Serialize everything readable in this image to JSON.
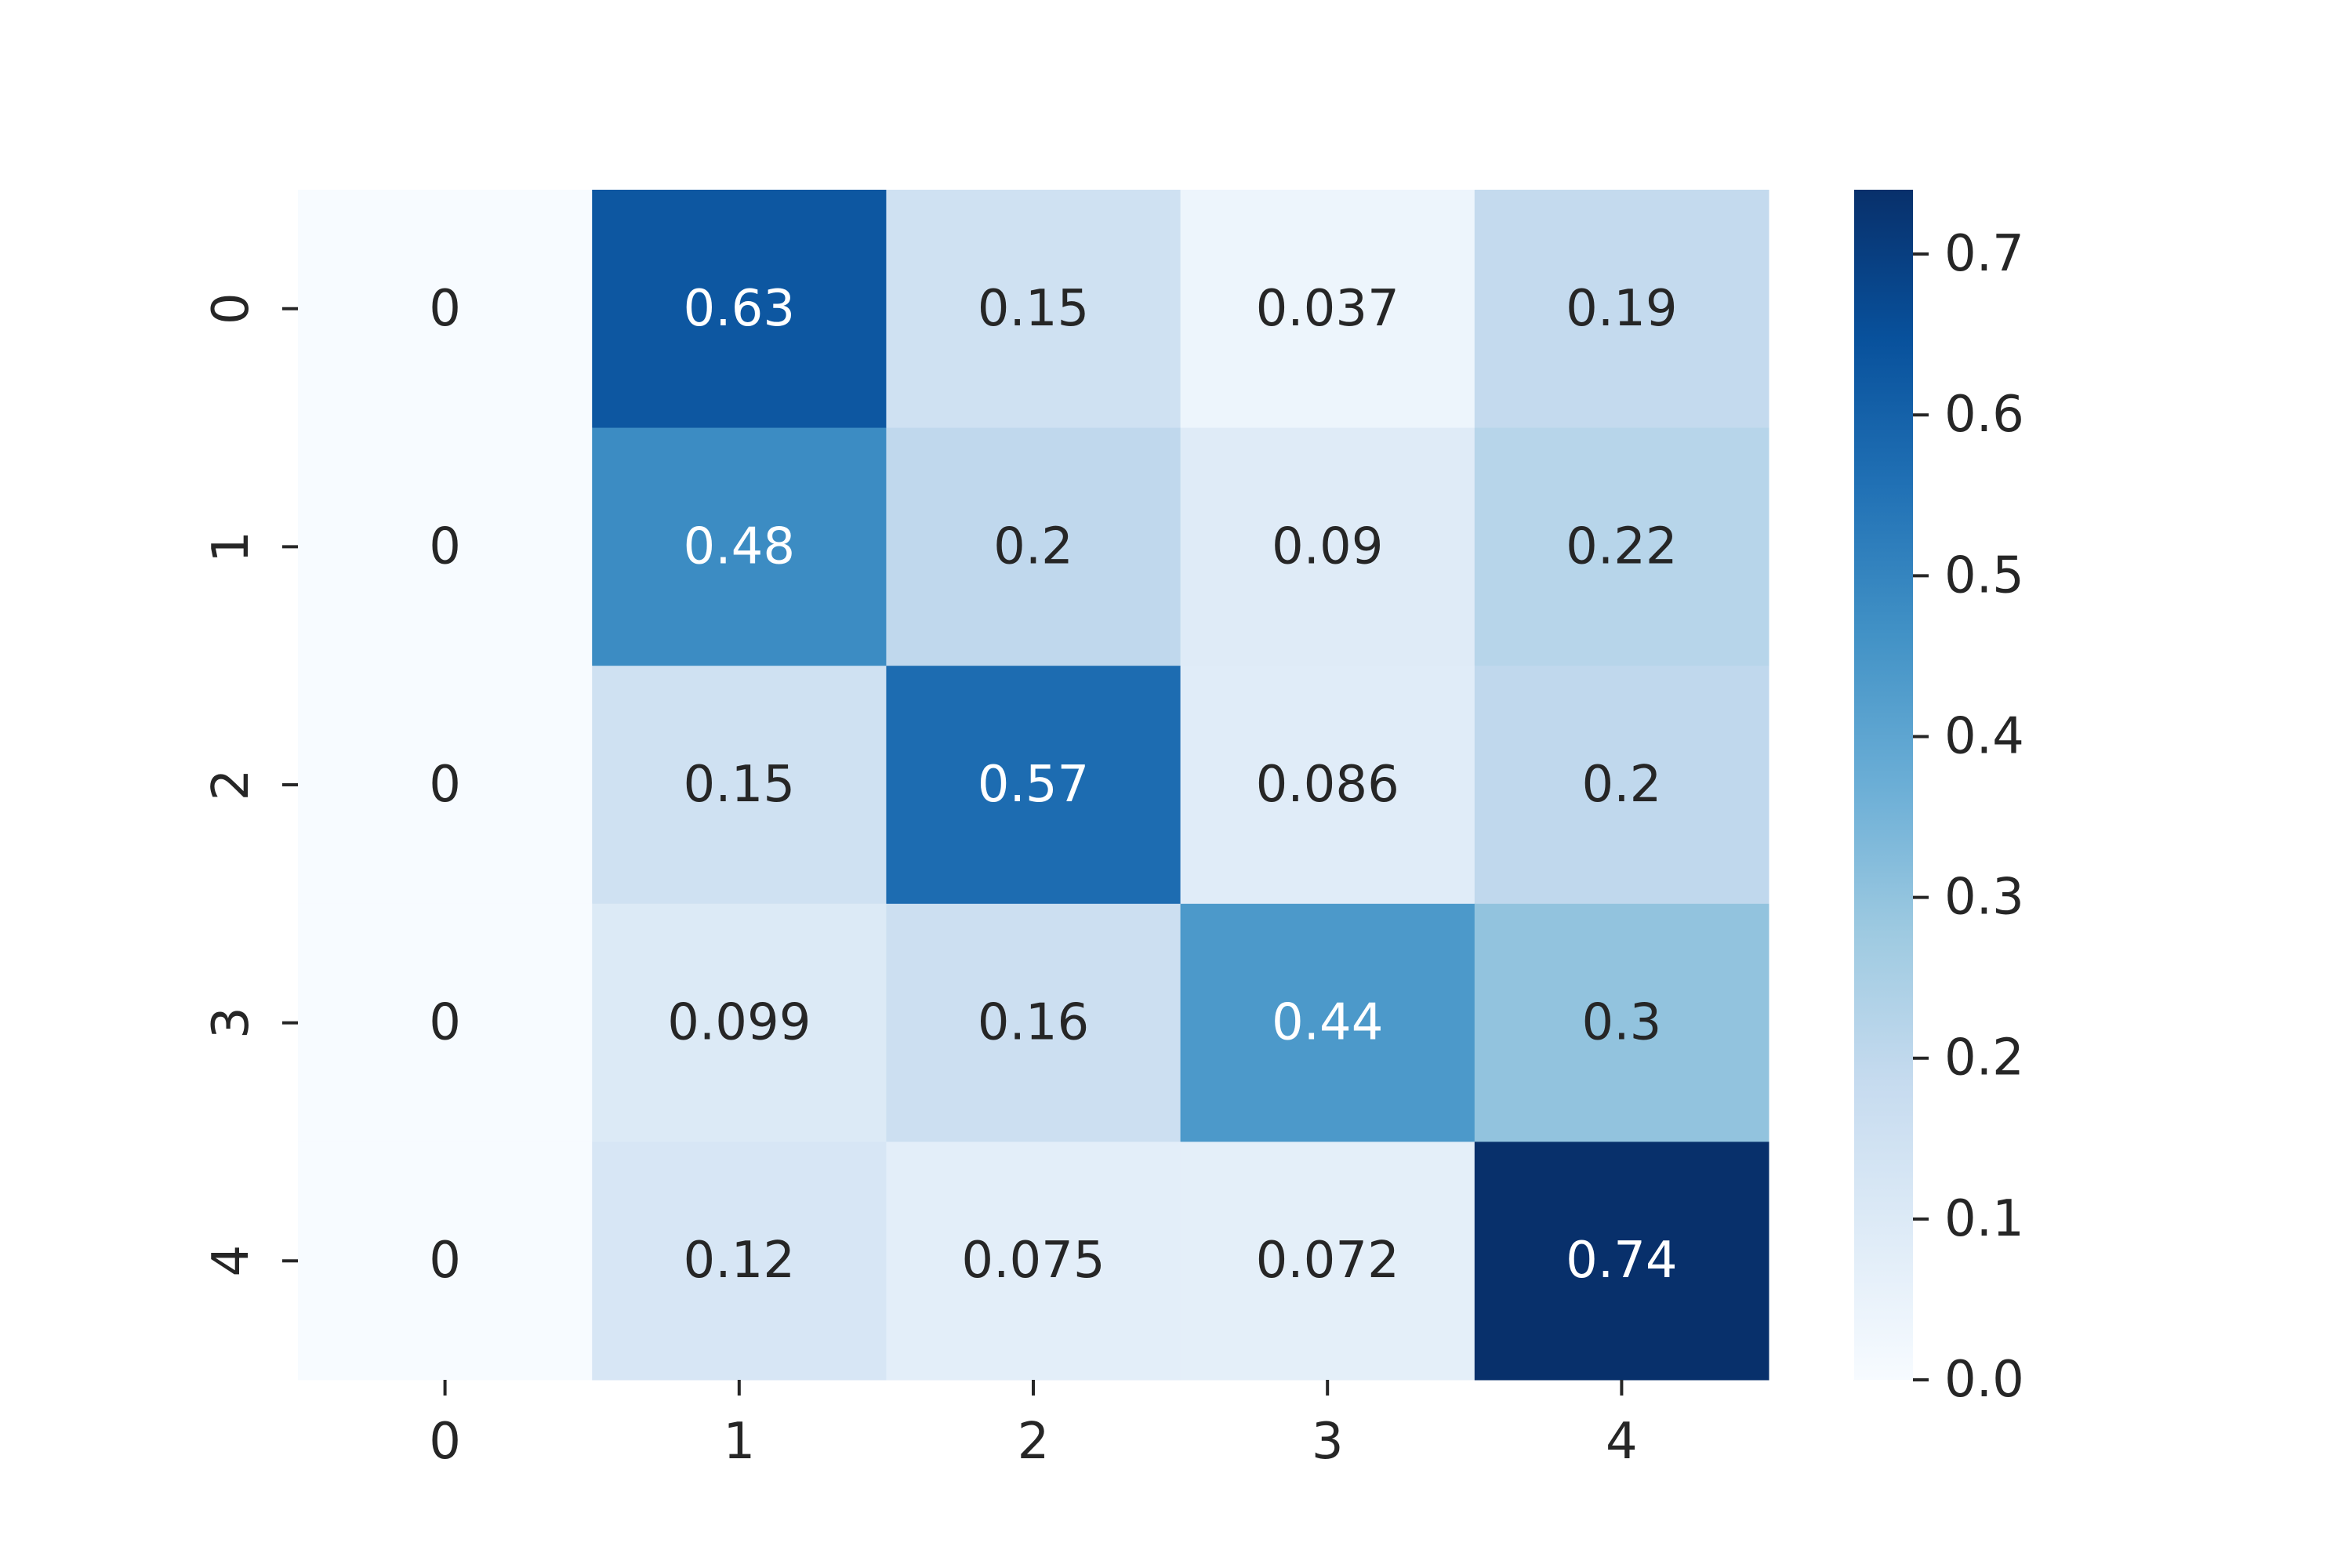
{
  "chart_data": {
    "type": "heatmap",
    "title": "",
    "xlabel": "",
    "ylabel": "",
    "x_categories": [
      "0",
      "1",
      "2",
      "3",
      "4"
    ],
    "y_categories": [
      "0",
      "1",
      "2",
      "3",
      "4"
    ],
    "values": [
      [
        0,
        0.63,
        0.15,
        0.037,
        0.19
      ],
      [
        0,
        0.48,
        0.2,
        0.09,
        0.22
      ],
      [
        0,
        0.15,
        0.57,
        0.086,
        0.2
      ],
      [
        0,
        0.099,
        0.16,
        0.44,
        0.3
      ],
      [
        0,
        0.12,
        0.075,
        0.072,
        0.74
      ]
    ],
    "annotations": [
      [
        "0",
        "0.63",
        "0.15",
        "0.037",
        "0.19"
      ],
      [
        "0",
        "0.48",
        "0.2",
        "0.09",
        "0.22"
      ],
      [
        "0",
        "0.15",
        "0.57",
        "0.086",
        "0.2"
      ],
      [
        "0",
        "0.099",
        "0.16",
        "0.44",
        "0.3"
      ],
      [
        "0",
        "0.12",
        "0.075",
        "0.072",
        "0.74"
      ]
    ],
    "colormap": "Blues",
    "vmin": 0,
    "vmax": 0.74,
    "colorbar": {
      "ticks": [
        0.0,
        0.1,
        0.2,
        0.3,
        0.4,
        0.5,
        0.6,
        0.7
      ],
      "tick_labels": [
        "0.0",
        "0.1",
        "0.2",
        "0.3",
        "0.4",
        "0.5",
        "0.6",
        "0.7"
      ]
    },
    "grid": false,
    "legend": "none",
    "colors": {
      "text_dark": "#262626",
      "text_light": "#ffffff",
      "blues": [
        "#f7fbff",
        "#deebf7",
        "#c6dbef",
        "#9ecae1",
        "#6baed6",
        "#4292c6",
        "#2171b5",
        "#08519c",
        "#08306b"
      ]
    }
  }
}
